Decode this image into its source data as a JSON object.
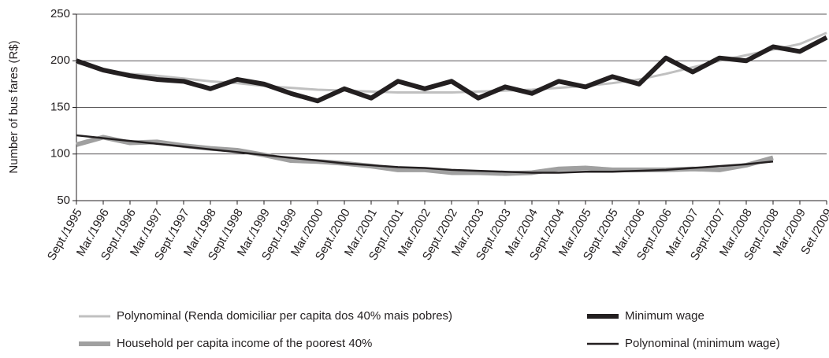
{
  "chart_data": {
    "type": "line",
    "y_label": "Number of bus fares (R$)",
    "categories": [
      "Sept./1995",
      "Mar./1996",
      "Sept./1996",
      "Mar./1997",
      "Sept./1997",
      "Mar./1998",
      "Sept./1998",
      "Mar./1999",
      "Sept./1999",
      "Mar./2000",
      "Sept./2000",
      "Mar./2001",
      "Sept./2001",
      "Mar./2002",
      "Sept./2002",
      "Mar./2003",
      "Sept./2003",
      "Mar./2004",
      "Sept./2004",
      "Mar./2005",
      "Sept./2005",
      "Mar./2006",
      "Sept./2006",
      "Mar./2007",
      "Sept./2007",
      "Mar./2008",
      "Sept./2008",
      "Mar./2009",
      "Set./2009"
    ],
    "series": [
      {
        "name": "Polynominal (Renda domiciliar per capita dos 40% mais pobres)",
        "color": "#c0c0c0",
        "width": 3,
        "values": [
          198,
          190,
          186,
          184,
          181,
          178,
          176,
          173,
          171,
          169,
          168,
          167,
          166,
          166,
          166,
          167,
          168,
          169,
          171,
          173,
          176,
          180,
          186,
          193,
          200,
          206,
          212,
          218,
          230
        ]
      },
      {
        "name": "Minimum wage",
        "color": "#231f20",
        "width": 6,
        "values": [
          200,
          190,
          184,
          180,
          178,
          170,
          180,
          175,
          165,
          157,
          170,
          160,
          178,
          170,
          178,
          160,
          172,
          165,
          178,
          172,
          183,
          175,
          203,
          188,
          203,
          200,
          215,
          210,
          225
        ]
      },
      {
        "name": "Household per capita income of the poorest 40%",
        "color": "#a0a0a0",
        "width": 6,
        "values": [
          110,
          118,
          112,
          113,
          109,
          106,
          104,
          99,
          93,
          92,
          90,
          87,
          83,
          83,
          80,
          80,
          79,
          80,
          84,
          85,
          83,
          83,
          83,
          84,
          83,
          88,
          96,
          null,
          null
        ]
      },
      {
        "name": "Polynominal (minimum wage)",
        "color": "#231f20",
        "width": 2.5,
        "values": [
          120,
          117,
          114,
          111,
          108,
          105,
          102,
          99,
          96,
          93,
          90,
          88,
          86,
          85,
          83,
          82,
          81,
          80,
          80,
          81,
          81,
          82,
          83,
          85,
          87,
          89,
          92,
          null,
          null
        ]
      }
    ],
    "ylim": [
      50,
      250
    ],
    "yticks": [
      50,
      100,
      150,
      200,
      250
    ],
    "grid": true
  }
}
